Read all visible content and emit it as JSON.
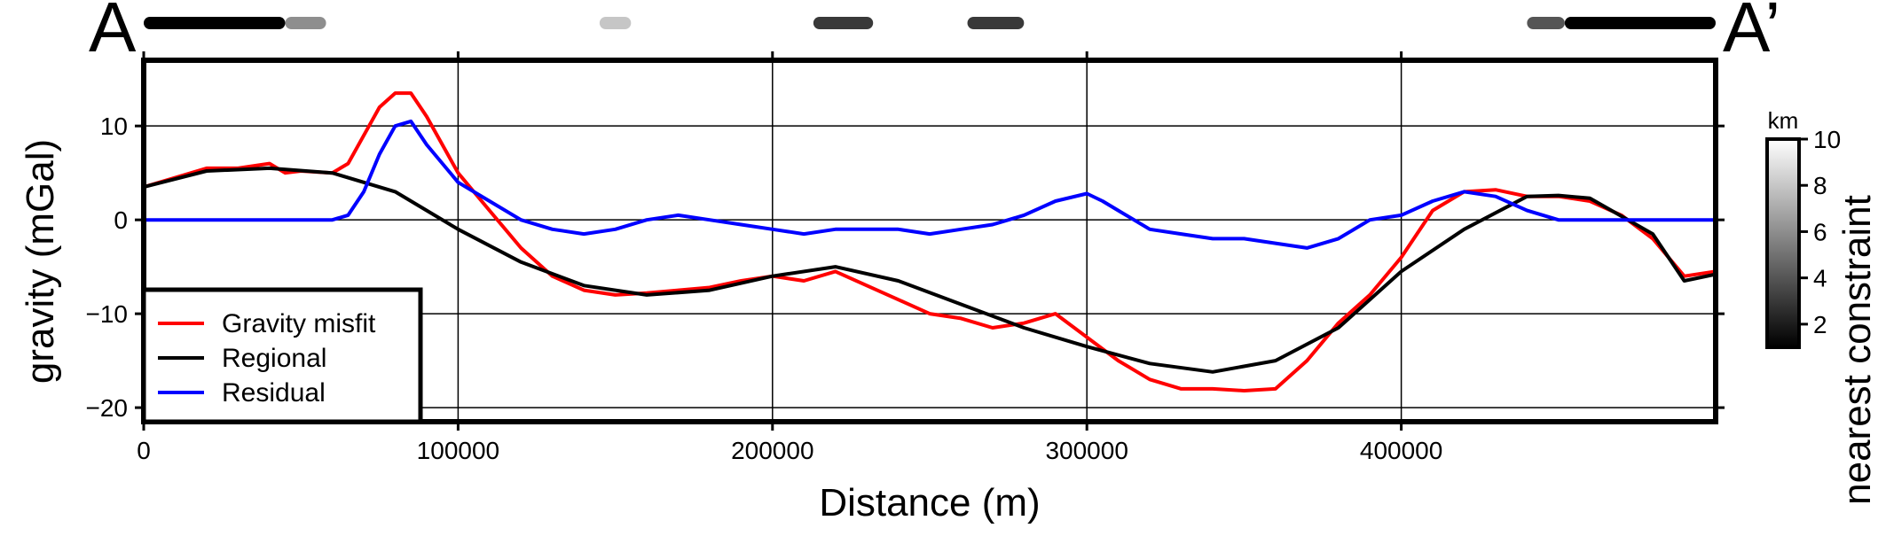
{
  "chart_data": {
    "type": "line",
    "xlabel": "Distance (m)",
    "ylabel": "gravity (mGal)",
    "xlim": [
      0,
      500000
    ],
    "ylim": [
      -21.5,
      17
    ],
    "xticks": [
      0,
      100000,
      200000,
      300000,
      400000
    ],
    "yticks": [
      10,
      0,
      -10,
      -20
    ],
    "xtick_labels": [
      "0",
      "100000",
      "200000",
      "300000",
      "400000"
    ],
    "ytick_labels": [
      "10",
      "0",
      "−10",
      "−20"
    ],
    "grid": true,
    "legend_position": "bottom-left",
    "profile_start_label": "A",
    "profile_end_label": "A’",
    "series": [
      {
        "name": "Gravity misfit",
        "color": "#ff0000",
        "x": [
          0,
          10000,
          20000,
          30000,
          40000,
          45000,
          50000,
          60000,
          65000,
          70000,
          75000,
          80000,
          85000,
          90000,
          100000,
          110000,
          120000,
          130000,
          140000,
          150000,
          160000,
          170000,
          180000,
          190000,
          200000,
          210000,
          220000,
          230000,
          240000,
          250000,
          260000,
          270000,
          280000,
          290000,
          300000,
          310000,
          320000,
          330000,
          340000,
          350000,
          360000,
          370000,
          380000,
          390000,
          400000,
          410000,
          420000,
          430000,
          440000,
          450000,
          460000,
          470000,
          480000,
          490000,
          500000
        ],
        "y": [
          3.5,
          4.5,
          5.5,
          5.5,
          6,
          5,
          5.2,
          5,
          6,
          9,
          12,
          13.5,
          13.5,
          11,
          5,
          1,
          -3,
          -6,
          -7.5,
          -8,
          -7.8,
          -7.5,
          -7.2,
          -6.5,
          -6,
          -6.5,
          -5.5,
          -7,
          -8.5,
          -10,
          -10.5,
          -11.5,
          -11,
          -10,
          -12.5,
          -15,
          -17,
          -18,
          -18,
          -18.2,
          -18,
          -15,
          -11,
          -8,
          -4,
          1,
          3,
          3.2,
          2.5,
          2.5,
          2,
          0.5,
          -2,
          -6,
          -5.5
        ]
      },
      {
        "name": "Regional",
        "color": "#000000",
        "x": [
          0,
          20000,
          40000,
          60000,
          80000,
          100000,
          120000,
          140000,
          160000,
          180000,
          200000,
          220000,
          240000,
          260000,
          280000,
          300000,
          320000,
          340000,
          360000,
          380000,
          400000,
          420000,
          440000,
          450000,
          460000,
          480000,
          490000,
          500000
        ],
        "y": [
          3.5,
          5.2,
          5.5,
          5,
          3,
          -1,
          -4.5,
          -7,
          -8,
          -7.5,
          -6,
          -5,
          -6.5,
          -9,
          -11.5,
          -13.5,
          -15.3,
          -16.2,
          -15,
          -11.5,
          -5.5,
          -1,
          2.5,
          2.6,
          2.3,
          -1.5,
          -6.5,
          -5.8
        ]
      },
      {
        "name": "Residual",
        "color": "#0000ff",
        "x": [
          0,
          20000,
          40000,
          60000,
          65000,
          70000,
          75000,
          80000,
          85000,
          90000,
          100000,
          110000,
          120000,
          130000,
          140000,
          150000,
          160000,
          170000,
          180000,
          190000,
          200000,
          210000,
          220000,
          230000,
          240000,
          250000,
          260000,
          270000,
          280000,
          290000,
          300000,
          305000,
          310000,
          320000,
          330000,
          340000,
          350000,
          360000,
          370000,
          380000,
          390000,
          400000,
          410000,
          420000,
          430000,
          440000,
          450000,
          460000,
          470000,
          480000,
          490000,
          500000
        ],
        "y": [
          0,
          0,
          0,
          0,
          0.5,
          3,
          7,
          10,
          10.5,
          8,
          4,
          2,
          0,
          -1,
          -1.5,
          -1,
          0,
          0.5,
          0,
          -0.5,
          -1,
          -1.5,
          -1,
          -1,
          -1,
          -1.5,
          -1,
          -0.5,
          0.5,
          2,
          2.8,
          2,
          1,
          -1,
          -1.5,
          -2,
          -2,
          -2.5,
          -3,
          -2,
          0,
          0.5,
          2,
          3,
          2.5,
          1,
          0,
          0,
          0,
          0,
          0,
          0
        ]
      }
    ],
    "colorbar": {
      "label": "nearest constraint",
      "unit": "km",
      "range": [
        1,
        10
      ],
      "ticks": [
        10,
        8,
        6,
        4,
        2
      ],
      "tick_labels": [
        "10",
        "8",
        "6",
        "4",
        "2"
      ],
      "colormap": "grayscale, black at low values to white at high values"
    },
    "constraint_bar": {
      "description": "thick strip along top edge, shaded by distance to nearest constraint (black = near, white = far)",
      "segments": [
        {
          "x0": 0,
          "x1": 45000,
          "value": 1
        },
        {
          "x0": 45000,
          "x1": 58000,
          "value": 6
        },
        {
          "x0": 145000,
          "x1": 155000,
          "value": 8
        },
        {
          "x0": 213000,
          "x1": 232000,
          "value": 3
        },
        {
          "x0": 262000,
          "x1": 280000,
          "value": 3
        },
        {
          "x0": 440000,
          "x1": 452000,
          "value": 4
        },
        {
          "x0": 452000,
          "x1": 500000,
          "value": 1
        }
      ]
    }
  }
}
